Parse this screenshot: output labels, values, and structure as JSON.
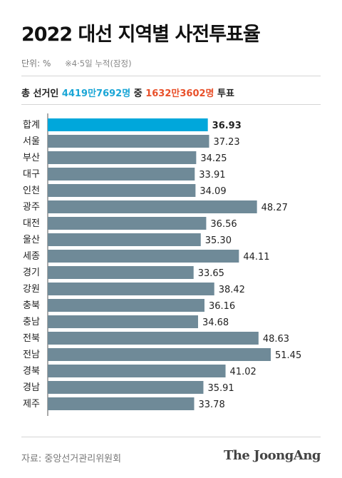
{
  "title": "2022 대선 지역별 사전투표율",
  "unit": "단위: %",
  "note": "※4·5일 누적(잠정)",
  "summary": {
    "prefix": "총 선거인 ",
    "electorate": "4419만7692명",
    "middle": " 중 ",
    "voters": "1632만3602명",
    "suffix": " 투표"
  },
  "source": "자료: 중앙선거관리위원회",
  "brand": "The JoongAng",
  "colors": {
    "highlight_bar": "#00a7db",
    "bar": "#6f8a98",
    "cyan_text": "#1aa6d6",
    "orange_text": "#e8502a"
  },
  "chart_data": {
    "type": "bar",
    "orientation": "horizontal",
    "categories": [
      "합계",
      "서울",
      "부산",
      "대구",
      "인천",
      "광주",
      "대전",
      "울산",
      "세종",
      "경기",
      "강원",
      "충북",
      "충남",
      "전북",
      "전남",
      "경북",
      "경남",
      "제주"
    ],
    "values": [
      36.93,
      37.23,
      34.25,
      33.91,
      34.09,
      48.27,
      36.56,
      35.3,
      44.11,
      33.65,
      38.42,
      36.16,
      34.68,
      48.63,
      51.45,
      41.02,
      35.91,
      33.78
    ],
    "value_labels": [
      "36.93",
      "37.23",
      "34.25",
      "33.91",
      "34.09",
      "48.27",
      "36.56",
      "35.30",
      "44.11",
      "33.65",
      "38.42",
      "36.16",
      "34.68",
      "48.63",
      "51.45",
      "41.02",
      "35.91",
      "33.78"
    ],
    "highlight_index": 0,
    "xlim": [
      0,
      51.45
    ],
    "title": "",
    "xlabel": "",
    "ylabel": "",
    "grid": false,
    "legend": "none"
  }
}
